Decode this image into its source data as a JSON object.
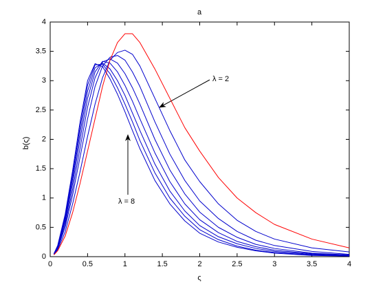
{
  "chart_data": {
    "type": "line",
    "title": "a",
    "x_label": "ς",
    "y_label": "b(ς)",
    "x": [
      0.05,
      0.1,
      0.2,
      0.3,
      0.4,
      0.5,
      0.6,
      0.7,
      0.8,
      0.9,
      1.0,
      1.1,
      1.2,
      1.4,
      1.6,
      1.8,
      2.0,
      2.25,
      2.5,
      2.75,
      3.0,
      3.5,
      4.0
    ],
    "series": [
      {
        "color": "#ff0000",
        "values": [
          0.03,
          0.1,
          0.35,
          0.75,
          1.25,
          1.8,
          2.35,
          2.9,
          3.35,
          3.65,
          3.8,
          3.8,
          3.65,
          3.2,
          2.7,
          2.2,
          1.8,
          1.35,
          1.0,
          0.75,
          0.55,
          0.3,
          0.15
        ]
      },
      {
        "color": "#0000cc",
        "values": [
          0.04,
          0.12,
          0.42,
          0.9,
          1.45,
          2.05,
          2.6,
          3.05,
          3.35,
          3.48,
          3.52,
          3.45,
          3.25,
          2.7,
          2.15,
          1.65,
          1.28,
          0.9,
          0.62,
          0.43,
          0.3,
          0.15,
          0.08
        ]
      },
      {
        "color": "#0000cc",
        "values": [
          0.04,
          0.14,
          0.5,
          1.05,
          1.7,
          2.35,
          2.9,
          3.25,
          3.4,
          3.43,
          3.35,
          3.15,
          2.9,
          2.3,
          1.75,
          1.3,
          0.95,
          0.65,
          0.43,
          0.28,
          0.19,
          0.09,
          0.04
        ]
      },
      {
        "color": "#0000cc",
        "values": [
          0.04,
          0.15,
          0.55,
          1.15,
          1.85,
          2.55,
          3.05,
          3.32,
          3.37,
          3.3,
          3.12,
          2.88,
          2.6,
          2.0,
          1.48,
          1.07,
          0.76,
          0.5,
          0.33,
          0.21,
          0.14,
          0.06,
          0.03
        ]
      },
      {
        "color": "#0000cc",
        "values": [
          0.05,
          0.16,
          0.6,
          1.25,
          2.0,
          2.7,
          3.15,
          3.33,
          3.3,
          3.15,
          2.92,
          2.65,
          2.35,
          1.77,
          1.28,
          0.9,
          0.63,
          0.41,
          0.26,
          0.17,
          0.11,
          0.05,
          0.02
        ]
      },
      {
        "color": "#0000cc",
        "values": [
          0.05,
          0.17,
          0.64,
          1.33,
          2.12,
          2.82,
          3.22,
          3.3,
          3.2,
          3.0,
          2.75,
          2.45,
          2.15,
          1.58,
          1.12,
          0.78,
          0.53,
          0.34,
          0.22,
          0.14,
          0.09,
          0.04,
          0.02
        ]
      },
      {
        "color": "#0000cc",
        "values": [
          0.05,
          0.18,
          0.68,
          1.4,
          2.22,
          2.92,
          3.27,
          3.28,
          3.12,
          2.88,
          2.6,
          2.3,
          1.98,
          1.43,
          1.0,
          0.69,
          0.46,
          0.29,
          0.18,
          0.11,
          0.07,
          0.03,
          0.01
        ]
      },
      {
        "color": "#0000cc",
        "values": [
          0.05,
          0.19,
          0.72,
          1.47,
          2.3,
          3.0,
          3.29,
          3.24,
          3.03,
          2.77,
          2.47,
          2.15,
          1.84,
          1.3,
          0.9,
          0.61,
          0.4,
          0.25,
          0.16,
          0.1,
          0.06,
          0.02,
          0.01
        ]
      }
    ],
    "annotations": [
      "λ = 2",
      "λ = 8"
    ],
    "xlim": [
      0,
      4
    ],
    "xticks": [
      0,
      0.5,
      1,
      1.5,
      2,
      2.5,
      3,
      3.5,
      4
    ],
    "ylim": [
      0,
      4
    ],
    "yticks": [
      0,
      0.5,
      1,
      1.5,
      2,
      2.5,
      3,
      3.5,
      4
    ],
    "grid": false
  }
}
